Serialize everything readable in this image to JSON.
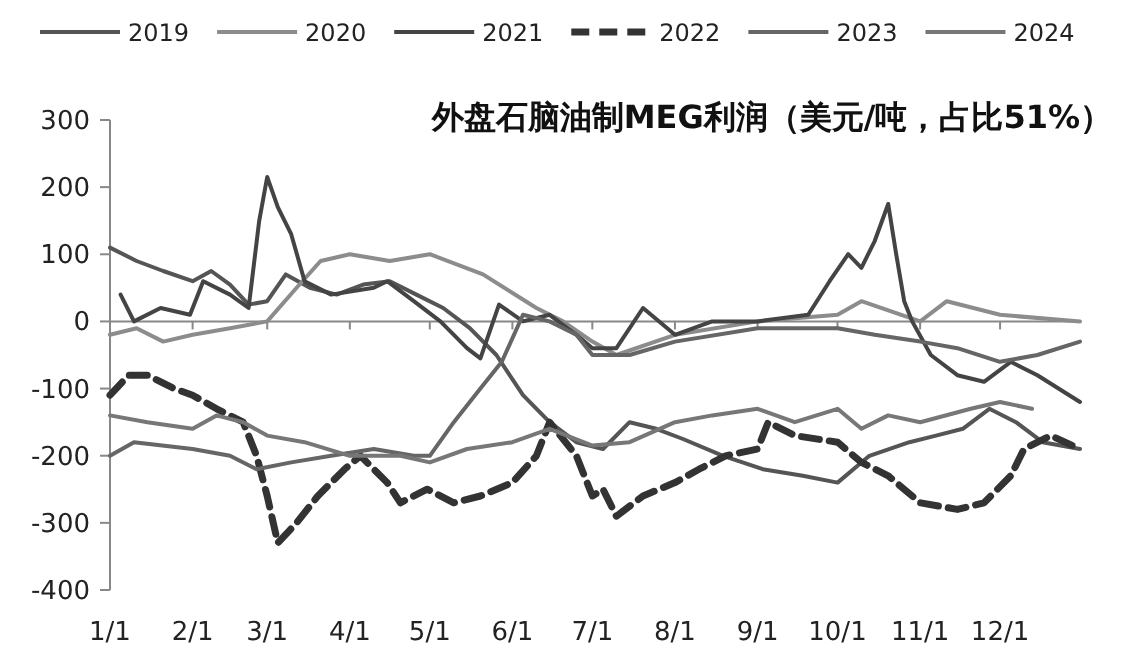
{
  "chart_data": {
    "type": "line",
    "title": "外盘石脑油制MEG利润（美元/吨，占比51%）",
    "legend": "top",
    "grid": false,
    "ref_lines": [
      {
        "axis": "y",
        "value": 0,
        "color": "#888888"
      }
    ],
    "xlim": [
      "--01-01",
      "--12-31"
    ],
    "ylim": [
      -400,
      300
    ],
    "yticks": [
      -400,
      -300,
      -200,
      -100,
      0,
      100,
      200,
      300
    ],
    "xticks": [
      {
        "value": "--01-01",
        "label": "1/1"
      },
      {
        "value": "--02-01",
        "label": "2/1"
      },
      {
        "value": "--03-01",
        "label": "3/1"
      },
      {
        "value": "--04-01",
        "label": "4/1"
      },
      {
        "value": "--05-01",
        "label": "5/1"
      },
      {
        "value": "--06-01",
        "label": "6/1"
      },
      {
        "value": "--07-01",
        "label": "7/1"
      },
      {
        "value": "--08-01",
        "label": "8/1"
      },
      {
        "value": "--09-01",
        "label": "9/1"
      },
      {
        "value": "--10-01",
        "label": "10/1"
      },
      {
        "value": "--11-01",
        "label": "11/1"
      },
      {
        "value": "--12-01",
        "label": "12/1"
      }
    ],
    "series": [
      {
        "name": "2019",
        "color": "#555555",
        "x": [
          "--01-01",
          "--01-11",
          "--01-21",
          "--02-01",
          "--02-08",
          "--02-15",
          "--02-22",
          "--03-01",
          "--03-08",
          "--03-17",
          "--03-27",
          "--04-06",
          "--04-16",
          "--04-26",
          "--05-06",
          "--05-16",
          "--05-26",
          "--06-05",
          "--06-15",
          "--06-25",
          "--07-05",
          "--07-15",
          "--07-25",
          "--08-04",
          "--08-19",
          "--09-03",
          "--09-18",
          "--10-01",
          "--10-13",
          "--10-28",
          "--11-07",
          "--11-17",
          "--11-27",
          "--12-07",
          "--12-17",
          "--12-31"
        ],
        "values": [
          110,
          90,
          75,
          60,
          75,
          55,
          25,
          30,
          70,
          50,
          40,
          55,
          60,
          40,
          20,
          -10,
          -50,
          -110,
          -150,
          -180,
          -190,
          -150,
          -160,
          -175,
          -200,
          -220,
          -230,
          -240,
          -200,
          -180,
          -170,
          -160,
          -130,
          -150,
          -180,
          -190
        ]
      },
      {
        "name": "2020",
        "color": "#8c8c8c",
        "x": [
          "--01-01",
          "--01-11",
          "--01-21",
          "--02-01",
          "--02-15",
          "--03-01",
          "--03-12",
          "--03-21",
          "--04-01",
          "--04-16",
          "--05-01",
          "--05-21",
          "--06-10",
          "--06-20",
          "--07-01",
          "--07-10",
          "--08-01",
          "--09-01",
          "--10-01",
          "--10-10",
          "--11-01",
          "--11-11",
          "--12-01",
          "--12-31"
        ],
        "values": [
          -20,
          -10,
          -30,
          -20,
          -10,
          0,
          50,
          90,
          100,
          90,
          100,
          70,
          20,
          0,
          -30,
          -50,
          -20,
          0,
          10,
          30,
          0,
          30,
          10,
          0
        ]
      },
      {
        "name": "2021",
        "color": "#444444",
        "x": [
          "--01-05",
          "--01-10",
          "--01-20",
          "--01-31",
          "--02-05",
          "--02-15",
          "--02-22",
          "--02-26",
          "--03-01",
          "--03-05",
          "--03-10",
          "--03-15",
          "--03-25",
          "--04-10",
          "--04-15",
          "--04-25",
          "--05-05",
          "--05-15",
          "--05-20",
          "--05-27",
          "--06-05",
          "--06-15",
          "--06-25",
          "--07-01",
          "--07-10",
          "--07-20",
          "--08-01",
          "--08-15",
          "--09-01",
          "--09-20",
          "--09-28",
          "--10-05",
          "--10-10",
          "--10-15",
          "--10-20",
          "--10-23",
          "--10-26",
          "--10-29",
          "--11-05",
          "--11-15",
          "--11-25",
          "--12-05",
          "--12-15",
          "--12-31"
        ],
        "values": [
          40,
          0,
          20,
          10,
          60,
          40,
          20,
          150,
          215,
          170,
          130,
          60,
          40,
          50,
          60,
          30,
          0,
          -40,
          -55,
          25,
          0,
          10,
          -20,
          -40,
          -40,
          20,
          -20,
          0,
          0,
          10,
          60,
          100,
          80,
          120,
          175,
          100,
          30,
          0,
          -50,
          -80,
          -90,
          -60,
          -80,
          -120
        ]
      },
      {
        "name": "2022",
        "color": "#333333",
        "line_style": "dashed",
        "x": [
          "--01-01",
          "--01-08",
          "--01-15",
          "--01-25",
          "--02-01",
          "--02-10",
          "--02-20",
          "--02-25",
          "--03-01",
          "--03-05",
          "--03-12",
          "--03-20",
          "--03-30",
          "--04-05",
          "--04-15",
          "--04-20",
          "--04-30",
          "--05-10",
          "--05-20",
          "--06-01",
          "--06-10",
          "--06-15",
          "--06-25",
          "--07-01",
          "--07-05",
          "--07-10",
          "--07-20",
          "--08-01",
          "--08-10",
          "--08-20",
          "--09-01",
          "--09-05",
          "--09-15",
          "--10-01",
          "--10-10",
          "--10-20",
          "--11-01",
          "--11-15",
          "--11-25",
          "--12-05",
          "--12-10",
          "--12-20",
          "--12-31"
        ],
        "values": [
          -110,
          -80,
          -80,
          -100,
          -110,
          -130,
          -150,
          -200,
          -260,
          -330,
          -300,
          -260,
          -220,
          -200,
          -240,
          -270,
          -250,
          -270,
          -260,
          -240,
          -200,
          -150,
          -200,
          -260,
          -250,
          -290,
          -260,
          -240,
          -220,
          -200,
          -190,
          -150,
          -170,
          -180,
          -210,
          -230,
          -270,
          -280,
          -270,
          -230,
          -190,
          -170,
          -190
        ]
      },
      {
        "name": "2023",
        "color": "#666666",
        "x": [
          "--01-01",
          "--01-10",
          "--02-01",
          "--02-15",
          "--02-25",
          "--03-10",
          "--03-25",
          "--04-10",
          "--04-25",
          "--05-01",
          "--05-10",
          "--05-20",
          "--05-28",
          "--06-05",
          "--06-15",
          "--06-25",
          "--07-01",
          "--07-15",
          "--08-01",
          "--09-01",
          "--10-01",
          "--10-15",
          "--11-01",
          "--11-15",
          "--12-01",
          "--12-15",
          "--12-31"
        ],
        "values": [
          -200,
          -180,
          -190,
          -200,
          -220,
          -210,
          -200,
          -190,
          -200,
          -200,
          -150,
          -100,
          -60,
          10,
          0,
          -20,
          -50,
          -50,
          -30,
          -10,
          -10,
          -20,
          -30,
          -40,
          -60,
          -50,
          -30
        ]
      },
      {
        "name": "2024",
        "color": "#777777",
        "x": [
          "--01-01",
          "--01-15",
          "--02-01",
          "--02-10",
          "--02-20",
          "--03-01",
          "--03-15",
          "--04-01",
          "--04-20",
          "--05-01",
          "--05-15",
          "--06-01",
          "--06-15",
          "--07-01",
          "--07-15",
          "--08-01",
          "--08-15",
          "--09-01",
          "--09-15",
          "--10-01",
          "--10-10",
          "--10-20",
          "--11-01",
          "--11-20",
          "--12-01",
          "--12-13"
        ],
        "values": [
          -140,
          -150,
          -160,
          -140,
          -150,
          -170,
          -180,
          -200,
          -200,
          -210,
          -190,
          -180,
          -160,
          -185,
          -180,
          -150,
          -140,
          -130,
          -150,
          -130,
          -160,
          -140,
          -150,
          -130,
          -120,
          -130
        ]
      }
    ]
  }
}
